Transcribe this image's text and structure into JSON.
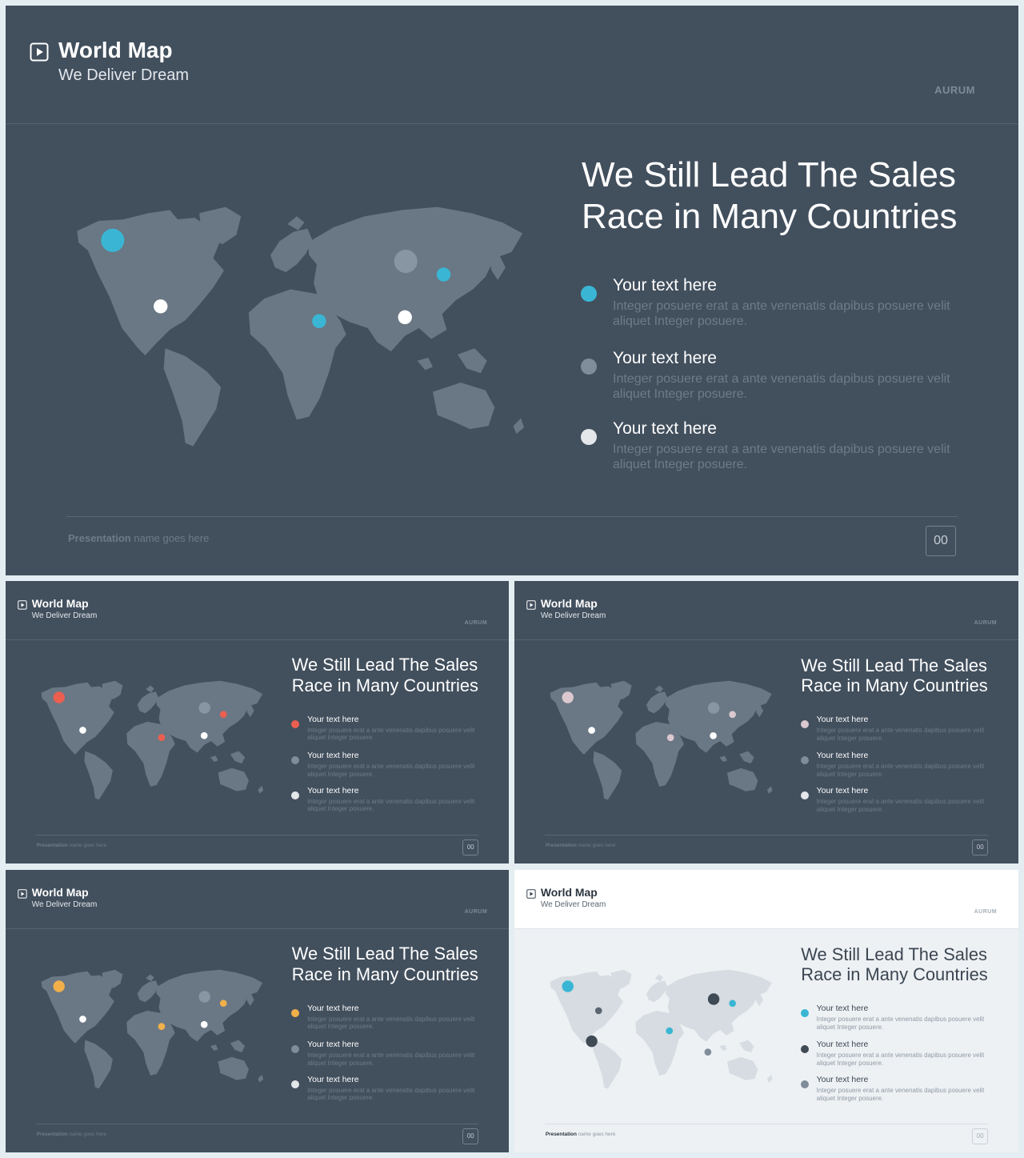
{
  "slides": [
    {
      "id": "main",
      "theme": "dark",
      "title": "World Map",
      "subtitle": "We Deliver Dream",
      "brand": "AURUM",
      "headline_line1": "We Still Lead The Sales",
      "headline_line2": "Race in Many Countries",
      "items": [
        {
          "label": "Your text here",
          "desc": "Integer posuere erat a ante venenatis dapibus posuere velit aliquet Integer posuere.",
          "color": "#3ab6d4"
        },
        {
          "label": "Your text here",
          "desc": "Integer posuere erat a ante venenatis dapibus posuere velit aliquet Integer posuere.",
          "color": "#7f8c99"
        },
        {
          "label": "Your text here",
          "desc": "Integer posuere erat a ante venenatis dapibus posuere velit aliquet Integer posuere.",
          "color": "#e4e7ea"
        }
      ],
      "map_color": "#6a7784",
      "markers": [
        "#3ab6d4",
        "#ffffff",
        "#8896a4",
        "#3ab6d4",
        "#3ab6d4",
        "#ffffff"
      ],
      "footer_bold": "Presentation",
      "footer_rest": " name goes here",
      "page_number": "00"
    },
    {
      "id": "red",
      "theme": "dark",
      "title": "World Map",
      "subtitle": "We Deliver Dream",
      "brand": "AURUM",
      "headline_line1": "We Still Lead The Sales",
      "headline_line2": "Race in Many Countries",
      "items": [
        {
          "label": "Your text here",
          "desc": "Integer posuere erat a ante venenatis dapibus posuere velit aliquet Integer posuere.",
          "color": "#ec5f50"
        },
        {
          "label": "Your text here",
          "desc": "Integer posuere erat a ante venenatis dapibus posuere velit aliquet Integer posuere.",
          "color": "#7f8c99"
        },
        {
          "label": "Your text here",
          "desc": "Integer posuere erat a ante venenatis dapibus posuere velit aliquet Integer posuere.",
          "color": "#e4e7ea"
        }
      ],
      "map_color": "#6a7784",
      "markers": [
        "#ec5f50",
        "#ffffff",
        "#8896a4",
        "#ec5f50",
        "#ec5f50",
        "#ffffff"
      ],
      "footer_bold": "Presentation",
      "footer_rest": " name goes here",
      "page_number": "00"
    },
    {
      "id": "pink",
      "theme": "dark",
      "title": "World Map",
      "subtitle": "We Deliver Dream",
      "brand": "AURUM",
      "headline_line1": "We Still Lead The Sales",
      "headline_line2": "Race in Many Countries",
      "items": [
        {
          "label": "Your text here",
          "desc": "Integer posuere erat a ante venenatis dapibus posuere velit aliquet Integer posuere.",
          "color": "#dcc8cf"
        },
        {
          "label": "Your text here",
          "desc": "Integer posuere erat a ante venenatis dapibus posuere velit aliquet Integer posuere.",
          "color": "#7f8c99"
        },
        {
          "label": "Your text here",
          "desc": "Integer posuere erat a ante venenatis dapibus posuere velit aliquet Integer posuere.",
          "color": "#e4e7ea"
        }
      ],
      "map_color": "#6a7784",
      "markers": [
        "#dcc8cf",
        "#ffffff",
        "#8896a4",
        "#dcc8cf",
        "#dcc8cf",
        "#ffffff"
      ],
      "footer_bold": "Presentation",
      "footer_rest": " name goes here",
      "page_number": "00"
    },
    {
      "id": "orange",
      "theme": "dark",
      "title": "World Map",
      "subtitle": "We Deliver Dream",
      "brand": "AURUM",
      "headline_line1": "We Still Lead The Sales",
      "headline_line2": "Race in Many Countries",
      "items": [
        {
          "label": "Your text here",
          "desc": "Integer posuere erat a ante venenatis dapibus posuere velit aliquet Integer posuere.",
          "color": "#f1b04a"
        },
        {
          "label": "Your text here",
          "desc": "Integer posuere erat a ante venenatis dapibus posuere velit aliquet Integer posuere.",
          "color": "#7f8c99"
        },
        {
          "label": "Your text here",
          "desc": "Integer posuere erat a ante venenatis dapibus posuere velit aliquet Integer posuere.",
          "color": "#e4e7ea"
        }
      ],
      "map_color": "#6a7784",
      "markers": [
        "#f1b04a",
        "#ffffff",
        "#8896a4",
        "#f1b04a",
        "#f1b04a",
        "#ffffff"
      ],
      "footer_bold": "Presentation",
      "footer_rest": " name goes here",
      "page_number": "00"
    },
    {
      "id": "light",
      "theme": "light",
      "title": "World Map",
      "subtitle": "We Deliver Dream",
      "brand": "AURUM",
      "headline_line1": "We Still Lead The Sales",
      "headline_line2": "Race in Many Countries",
      "items": [
        {
          "label": "Your text here",
          "desc": "Integer posuere erat a ante venenatis dapibus posuere velit aliquet Integer posuere.",
          "color": "#3ab6d4"
        },
        {
          "label": "Your text here",
          "desc": "Integer posuere erat a ante venenatis dapibus posuere velit aliquet Integer posuere.",
          "color": "#3f4a55"
        },
        {
          "label": "Your text here",
          "desc": "Integer posuere erat a ante venenatis dapibus posuere velit aliquet Integer posuere.",
          "color": "#7f8c99"
        }
      ],
      "map_color": "#d6dce1",
      "markers": [
        "#3ab6d4",
        "#5a6672",
        "#3f4a55",
        "#3ab6d4",
        "#3ab6d4",
        "#3f4a55",
        "#7f8c99"
      ],
      "footer_bold": "Presentation",
      "footer_rest": " name goes here",
      "page_number": "00"
    }
  ]
}
